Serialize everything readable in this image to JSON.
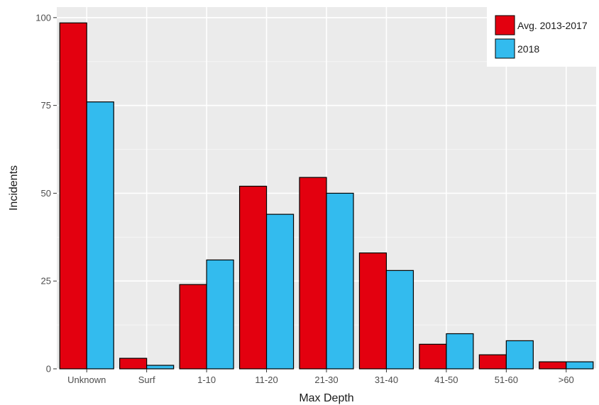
{
  "chart_data": {
    "type": "bar",
    "title": "",
    "xlabel": "Max Depth",
    "ylabel": "Incidents",
    "categories": [
      "Unknown",
      "Surf",
      "1-10",
      "11-20",
      "21-30",
      "31-40",
      "41-50",
      "51-60",
      ">60"
    ],
    "series": [
      {
        "name": "Avg. 2013-2017",
        "color": "#e3000f",
        "values": [
          98.5,
          3,
          24,
          52,
          54.5,
          33,
          7,
          4,
          2
        ]
      },
      {
        "name": "2018",
        "color": "#33bbee",
        "values": [
          76,
          1,
          31,
          44,
          50,
          28,
          10,
          8,
          2
        ]
      }
    ],
    "ylim": [
      0,
      103
    ],
    "yticks": [
      0,
      25,
      50,
      75,
      100
    ],
    "grid": true,
    "legend_position": "top-right"
  }
}
